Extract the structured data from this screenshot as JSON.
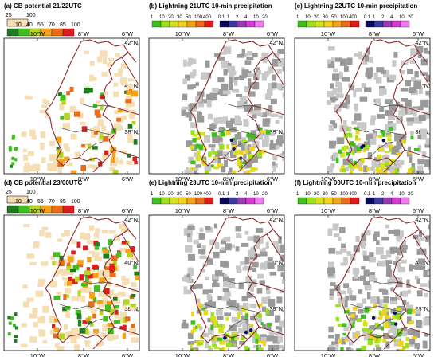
{
  "panels": [
    {
      "title": "(a) CB potential  21/22UTC",
      "type": "cb",
      "legend": {
        "top": [
          "25",
          "100"
        ],
        "bottom": [
          "10",
          "40",
          "55",
          "70",
          "85",
          "100"
        ]
      },
      "colors": {
        "top": [
          "#f5deb3"
        ],
        "bottom": [
          "#1e7b1e",
          "#3fbf1f",
          "#b5d51f",
          "#f2a21b",
          "#ea6b1b",
          "#e01b1b"
        ]
      },
      "lon_labels": [
        "10°W",
        "8°W",
        "6°W"
      ],
      "lat_labels": [
        "42°N",
        "40°N",
        "38°N"
      ]
    },
    {
      "title": "(b) Lightning  21UTC     10-min precipitation",
      "type": "lightning",
      "legend": {
        "top": [
          "1",
          "10",
          "20",
          "30",
          "50",
          "100",
          "400",
          "0.1",
          "1",
          "2",
          "4",
          "10",
          "20"
        ]
      },
      "colors": {
        "top": [
          "#3fbf1f",
          "#9be01b",
          "#d5e21b",
          "#f2d21b",
          "#f2a21b",
          "#ea6b1b",
          "#e01b1b",
          "#0a0a5a",
          "#3a3aa0",
          "#9b3ab5",
          "#d53ad5",
          "#f07af0"
        ]
      },
      "lon_labels": [
        "10°W",
        "8°W",
        "6°W"
      ],
      "lat_labels": [
        "42°N",
        "40°N",
        "38°N"
      ]
    },
    {
      "title": "(c) Lightning  22UTC     10-min precipitation",
      "type": "lightning",
      "legend": {
        "top": [
          "1",
          "10",
          "20",
          "30",
          "50",
          "100",
          "400",
          "0.1",
          "1",
          "2",
          "4",
          "10",
          "20"
        ]
      },
      "colors": {
        "top": [
          "#3fbf1f",
          "#9be01b",
          "#d5e21b",
          "#f2d21b",
          "#f2a21b",
          "#ea6b1b",
          "#e01b1b",
          "#0a0a5a",
          "#3a3aa0",
          "#9b3ab5",
          "#d53ad5",
          "#f07af0"
        ]
      },
      "lon_labels": [
        "10°W",
        "8°W",
        "6°W"
      ],
      "lat_labels": [
        "42°N",
        "40°N",
        "38°N"
      ]
    },
    {
      "title": "(d) CB potential  23/00UTC",
      "type": "cb",
      "legend": {
        "top": [
          "25",
          "100"
        ],
        "bottom": [
          "10",
          "40",
          "55",
          "70",
          "85",
          "100"
        ]
      },
      "colors": {
        "top": [
          "#f5deb3"
        ],
        "bottom": [
          "#1e7b1e",
          "#3fbf1f",
          "#b5d51f",
          "#f2a21b",
          "#ea6b1b",
          "#e01b1b"
        ]
      },
      "lon_labels": [
        "10°W",
        "8°W",
        "6°W"
      ],
      "lat_labels": [
        "42°N",
        "40°N",
        "38°N"
      ]
    },
    {
      "title": "(e) Lightning  23UTC     10-min precipitation",
      "type": "lightning",
      "legend": {
        "top": [
          "1",
          "10",
          "20",
          "30",
          "50",
          "100",
          "400",
          "0.1",
          "1",
          "2",
          "4",
          "10",
          "20"
        ]
      },
      "colors": {
        "top": [
          "#3fbf1f",
          "#9be01b",
          "#d5e21b",
          "#f2d21b",
          "#f2a21b",
          "#ea6b1b",
          "#e01b1b",
          "#0a0a5a",
          "#3a3aa0",
          "#9b3ab5",
          "#d53ad5",
          "#f07af0"
        ]
      },
      "lon_labels": [
        "10°W",
        "8°W",
        "6°W"
      ],
      "lat_labels": [
        "42°N",
        "40°N",
        "38°N"
      ]
    },
    {
      "title": "(f) Lightning  00UTC     10-min precipitation",
      "type": "lightning",
      "legend": {
        "top": [
          "1",
          "10",
          "20",
          "30",
          "50",
          "100",
          "400",
          "0.1",
          "1",
          "2",
          "4",
          "10",
          "20"
        ]
      },
      "colors": {
        "top": [
          "#3fbf1f",
          "#9be01b",
          "#d5e21b",
          "#f2d21b",
          "#f2a21b",
          "#ea6b1b",
          "#e01b1b",
          "#0a0a5a",
          "#3a3aa0",
          "#9b3ab5",
          "#d53ad5",
          "#f07af0"
        ]
      },
      "lon_labels": [
        "10°W",
        "8°W",
        "6°W"
      ],
      "lat_labels": [
        "42°N",
        "40°N",
        "38°N"
      ]
    }
  ],
  "map_colors": {
    "border": "#8b2a2a",
    "river": "#555555",
    "grey_light": "#c8c8c8",
    "grey_dark": "#9a9a9a",
    "frame": "#000000"
  }
}
